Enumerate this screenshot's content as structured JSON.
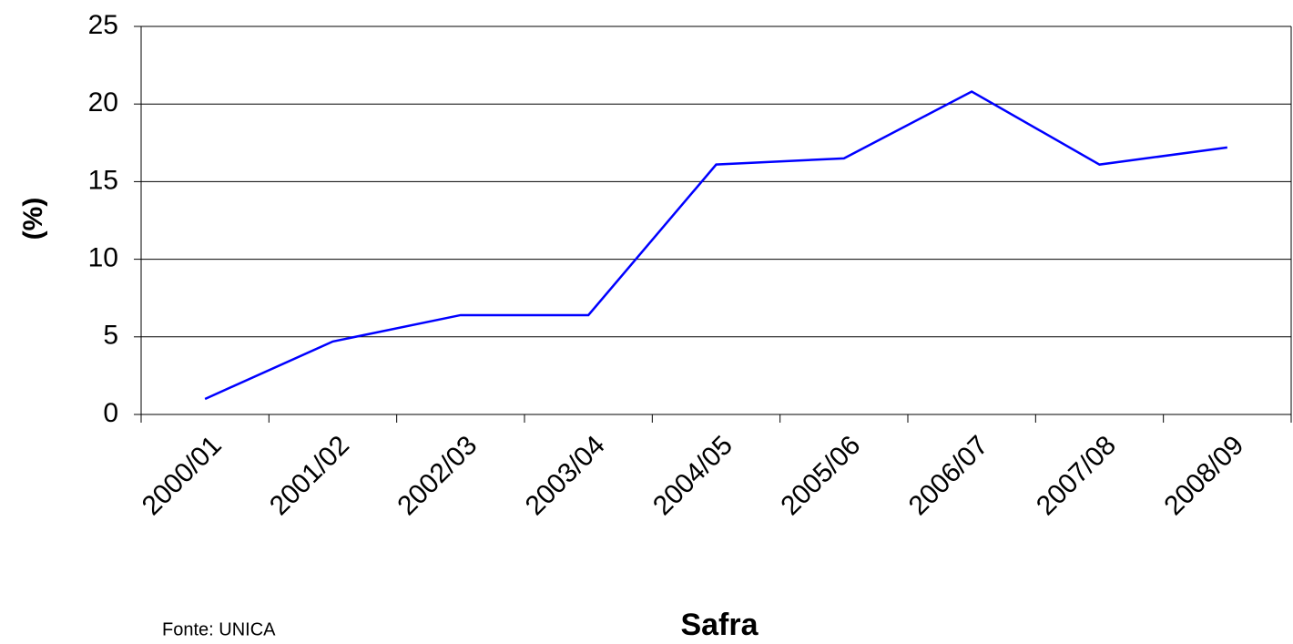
{
  "chart_data": {
    "type": "line",
    "x_label": "Safra",
    "y_label": "(%)",
    "source": "Fonte: UNICA",
    "categories": [
      "2000/01",
      "2001/02",
      "2002/03",
      "2003/04",
      "2004/05",
      "2005/06",
      "2006/07",
      "2007/08",
      "2008/09"
    ],
    "series": [
      {
        "name": "Safra",
        "color": "#0000ff",
        "values": [
          1.0,
          4.7,
          6.4,
          6.4,
          16.1,
          16.5,
          20.8,
          16.1,
          17.2
        ]
      }
    ],
    "ylim": [
      0,
      25
    ],
    "yticks": [
      0,
      5,
      10,
      15,
      20,
      25
    ],
    "grid": true
  }
}
